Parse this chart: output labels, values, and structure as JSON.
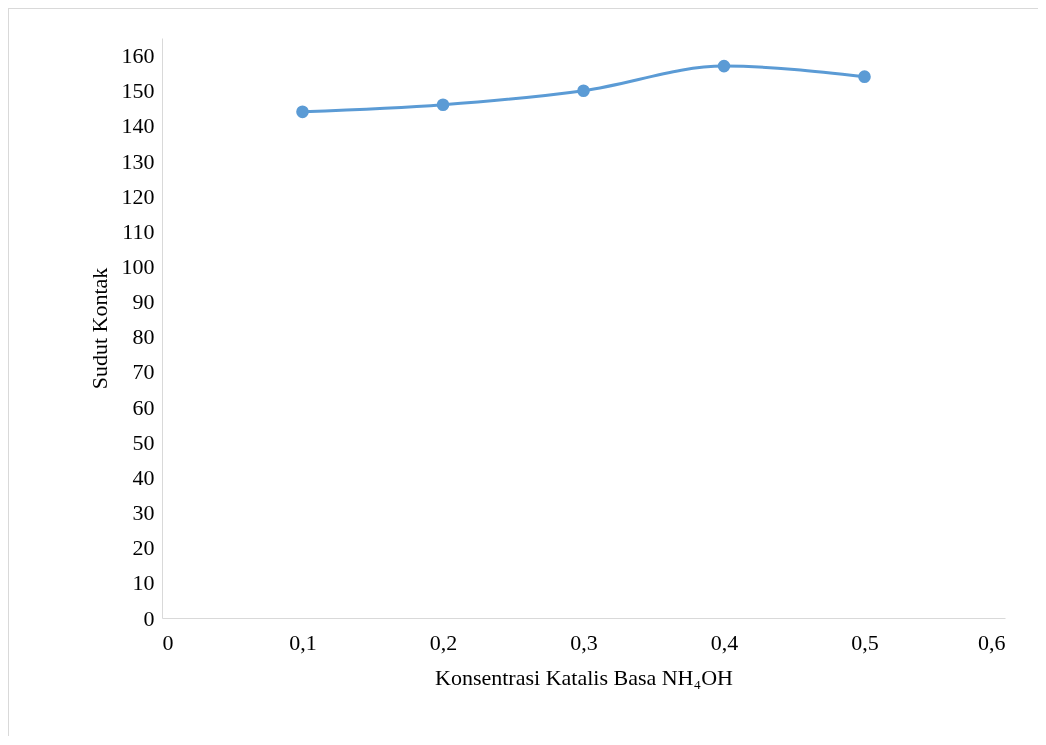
{
  "chart_data": {
    "type": "line",
    "xlabel": "Konsentrasi Katalis Basa NH₄OH",
    "ylabel": "Sudut Kontak",
    "x": [
      0.1,
      0.2,
      0.3,
      0.4,
      0.5
    ],
    "series": [
      {
        "color": "#5b9bd5",
        "values": [
          144,
          146,
          150,
          157,
          154
        ]
      }
    ],
    "xlim": [
      0,
      0.6
    ],
    "xticks": [
      {
        "value": 0,
        "label": "0"
      },
      {
        "value": 0.1,
        "label": "0,1"
      },
      {
        "value": 0.2,
        "label": "0,2"
      },
      {
        "value": 0.3,
        "label": "0,3"
      },
      {
        "value": 0.4,
        "label": "0,4"
      },
      {
        "value": 0.5,
        "label": "0,5"
      },
      {
        "value": 0.6,
        "label": "0,6"
      }
    ],
    "ylim": [
      0,
      165
    ],
    "yticks": [
      0,
      10,
      20,
      30,
      40,
      50,
      60,
      70,
      80,
      90,
      100,
      110,
      120,
      130,
      140,
      150,
      160
    ],
    "marker": "circle",
    "line_style": "solid",
    "grid": false
  }
}
